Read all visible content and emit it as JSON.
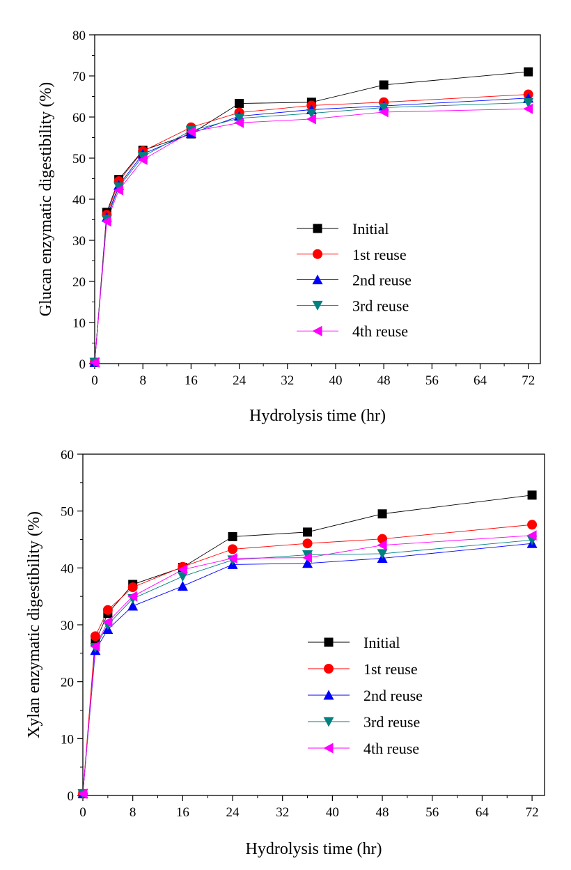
{
  "chart_data": [
    {
      "type": "line",
      "xlabel": "Hydrolysis time (hr)",
      "ylabel": "Glucan enzymatic digestibility (%)",
      "xlim": [
        0,
        74
      ],
      "ylim": [
        0,
        80
      ],
      "x_ticks": [
        0,
        8,
        16,
        24,
        32,
        40,
        48,
        56,
        64,
        72
      ],
      "y_ticks": [
        0,
        10,
        20,
        30,
        40,
        50,
        60,
        70,
        80
      ],
      "x": [
        0,
        2,
        4,
        8,
        16,
        24,
        36,
        48,
        72
      ],
      "legend_position": "center-right",
      "series": [
        {
          "name": "Initial",
          "color": "#000000",
          "marker": "square",
          "values": [
            0.3,
            36.8,
            44.8,
            51.9,
            55.9,
            63.3,
            63.6,
            67.8,
            71.0
          ]
        },
        {
          "name": "1st reuse",
          "color": "#ff0000",
          "marker": "circle",
          "values": [
            0.3,
            36.2,
            44.4,
            51.7,
            57.5,
            61.1,
            62.8,
            63.6,
            65.5
          ]
        },
        {
          "name": "2nd reuse",
          "color": "#0000ff",
          "marker": "triangle-up",
          "values": [
            0.3,
            35.6,
            43.4,
            51.0,
            56.0,
            60.2,
            61.8,
            62.7,
            64.6
          ]
        },
        {
          "name": "3rd reuse",
          "color": "#008080",
          "marker": "triangle-down",
          "values": [
            0.3,
            35.1,
            43.0,
            50.4,
            56.7,
            59.7,
            60.9,
            62.3,
            63.5
          ]
        },
        {
          "name": "4th reuse",
          "color": "#ff00ff",
          "marker": "triangle-left",
          "values": [
            0.3,
            34.6,
            42.2,
            49.6,
            56.4,
            58.6,
            59.5,
            61.2,
            62.0
          ]
        }
      ]
    },
    {
      "type": "line",
      "xlabel": "Hydrolysis time (hr)",
      "ylabel": "Xylan enzymatic digestibility (%)",
      "xlim": [
        0,
        74
      ],
      "ylim": [
        0,
        60
      ],
      "x_ticks": [
        0,
        8,
        16,
        24,
        32,
        40,
        48,
        56,
        64,
        72
      ],
      "y_ticks": [
        0,
        10,
        20,
        30,
        40,
        50,
        60
      ],
      "x": [
        0,
        2,
        4,
        8,
        16,
        24,
        36,
        48,
        72
      ],
      "legend_position": "center-right",
      "series": [
        {
          "name": "Initial",
          "color": "#000000",
          "marker": "square",
          "values": [
            0.3,
            27.0,
            32.0,
            37.1,
            40.1,
            45.5,
            46.3,
            49.5,
            52.8
          ]
        },
        {
          "name": "1st reuse",
          "color": "#ff0000",
          "marker": "circle",
          "values": [
            0.3,
            28.0,
            32.6,
            36.6,
            40.2,
            43.3,
            44.3,
            45.1,
            47.6
          ]
        },
        {
          "name": "2nd reuse",
          "color": "#0000ff",
          "marker": "triangle-up",
          "values": [
            0.3,
            25.5,
            29.2,
            33.3,
            36.8,
            40.6,
            40.8,
            41.7,
            44.3
          ]
        },
        {
          "name": "3rd reuse",
          "color": "#008080",
          "marker": "triangle-down",
          "values": [
            0.3,
            26.0,
            30.0,
            34.6,
            38.5,
            41.4,
            42.3,
            42.5,
            44.9
          ]
        },
        {
          "name": "4th reuse",
          "color": "#ff00ff",
          "marker": "triangle-left",
          "values": [
            0.3,
            26.2,
            30.5,
            35.0,
            39.7,
            41.7,
            41.8,
            44.0,
            45.7
          ]
        }
      ]
    }
  ]
}
